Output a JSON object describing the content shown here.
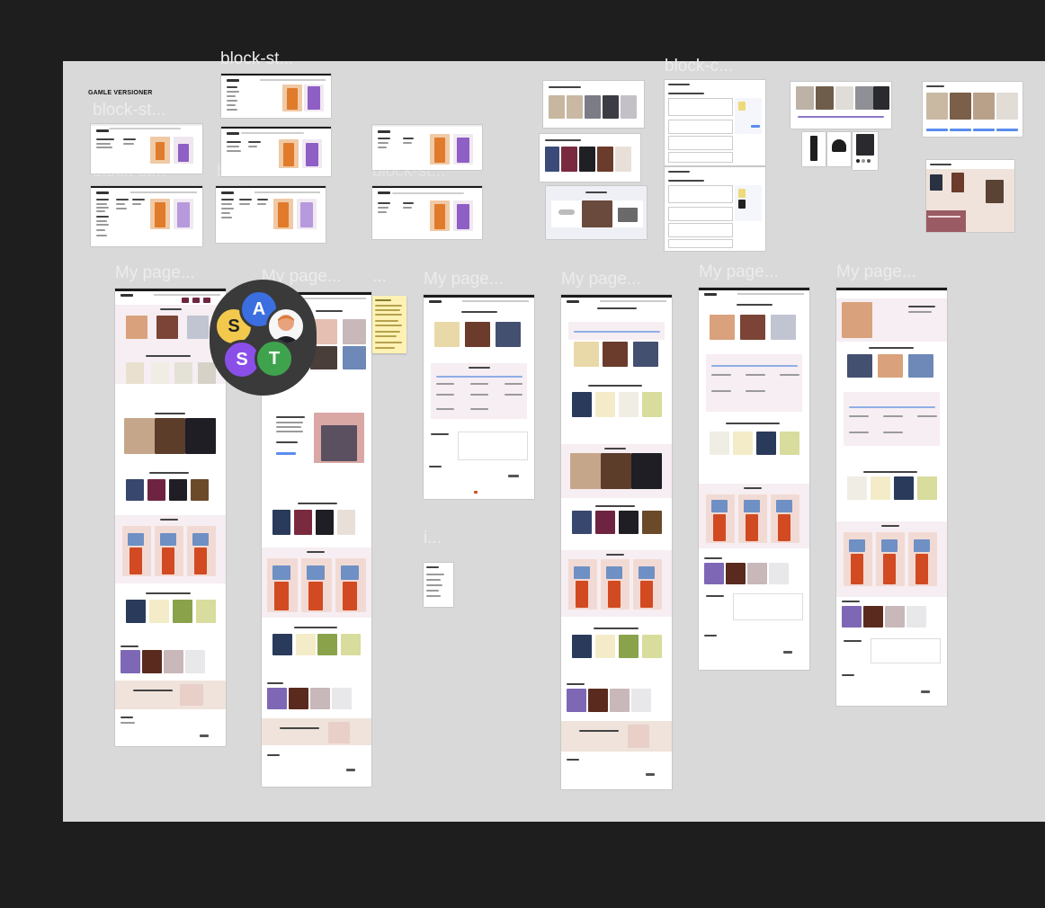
{
  "canvas": {
    "section_title": "GAMLE VERSIONER",
    "labels": {
      "block_st_1": "block-st...",
      "block_st_2": "block-st...",
      "block_st_3": "block-st...",
      "block_st_4": "block-st...",
      "block_st_5": "block-st...",
      "block_c": "block-c...",
      "my_page_1": "My page...",
      "my_page_2": "My page...",
      "my_page_3": "My page...",
      "my_page_4": "My page...",
      "my_page_5": "My page...",
      "my_page_6": "My page...",
      "dots_1": "...",
      "i_dots": "i..."
    }
  },
  "collaborators": [
    {
      "initial": "S",
      "color": "#f2c94c",
      "text_color": "#222222"
    },
    {
      "initial": "A",
      "color": "#3b6fe0",
      "text_color": "#ffffff"
    },
    {
      "initial": "",
      "color": "#f7f7f7",
      "text_color": "#222222",
      "kind": "photo"
    },
    {
      "initial": "S",
      "color": "#8a4fe8",
      "text_color": "#ffffff"
    },
    {
      "initial": "T",
      "color": "#3fa34d",
      "text_color": "#ffffff"
    }
  ],
  "colors": {
    "canvas_bg": "#1e1e1e",
    "section_bg": "#d9d9d9",
    "accent_blue": "#5b8def",
    "product_orange": "#e07b2c",
    "product_purple": "#8e5fc4"
  }
}
